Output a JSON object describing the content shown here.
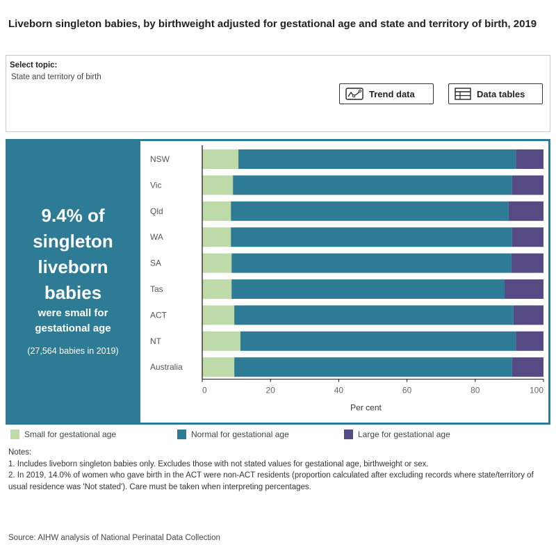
{
  "title": "Liveborn singleton babies, by birthweight adjusted for gestational age and state and territory of birth, 2019",
  "topic": {
    "label": "Select topic:",
    "value": "State and territory of birth"
  },
  "buttons": {
    "trend": {
      "label": "Trend data",
      "icon": "line-chart-icon"
    },
    "tables": {
      "label": "Data tables",
      "icon": "table-icon"
    }
  },
  "summary": {
    "headline_lines": [
      "9.4% of",
      "singleton",
      "liveborn",
      "babies"
    ],
    "sub_lines": [
      "were small for",
      "gestational age"
    ],
    "count": "(27,564 babies in 2019)"
  },
  "colors": {
    "small": "#bedaa8",
    "normal": "#2d7b95",
    "large": "#564a85",
    "panel": "#2d7b95"
  },
  "chart_data": {
    "type": "bar",
    "orientation": "horizontal",
    "stacked": true,
    "title": "Liveborn singleton babies, by birthweight adjusted for gestational age and state and territory of birth, 2019",
    "xlabel": "Per cent",
    "ylabel": "",
    "xlim": [
      0,
      100
    ],
    "xticks": [
      0,
      20,
      40,
      60,
      80,
      100
    ],
    "grid": false,
    "legend_position": "bottom",
    "categories": [
      "NSW",
      "Vic",
      "Qld",
      "WA",
      "SA",
      "Tas",
      "ACT",
      "NT",
      "Australia"
    ],
    "series": [
      {
        "name": "Small for gestational age",
        "color": "#bedaa8",
        "values": [
          10.6,
          9.0,
          8.4,
          8.4,
          8.6,
          8.6,
          9.4,
          11.2,
          9.4
        ]
      },
      {
        "name": "Normal for gestational age",
        "color": "#2d7b95",
        "values": [
          81.3,
          81.8,
          81.4,
          82.4,
          82.0,
          80.0,
          81.8,
          80.7,
          81.4
        ]
      },
      {
        "name": "Large for gestational age",
        "color": "#564a85",
        "values": [
          8.1,
          9.2,
          10.2,
          9.2,
          9.4,
          11.4,
          8.8,
          8.1,
          9.2
        ]
      }
    ]
  },
  "legend": [
    {
      "label": "Small for gestational age",
      "color": "#bedaa8"
    },
    {
      "label": "Normal for gestational age",
      "color": "#2d7b95"
    },
    {
      "label": "Large for gestational age",
      "color": "#564a85"
    }
  ],
  "notes": {
    "heading": "Notes:",
    "items": [
      "1. Includes liveborn singleton babies only. Excludes those with not stated values for gestational age, birthweight or sex.",
      "2. In 2019, 14.0% of women who gave birth in the ACT were non-ACT residents (proportion calculated after excluding records where state/territory of usual residence was 'Not stated'). Care must be taken when interpreting percentages."
    ]
  },
  "source": "Source: AIHW analysis of National Perinatal Data Collection"
}
